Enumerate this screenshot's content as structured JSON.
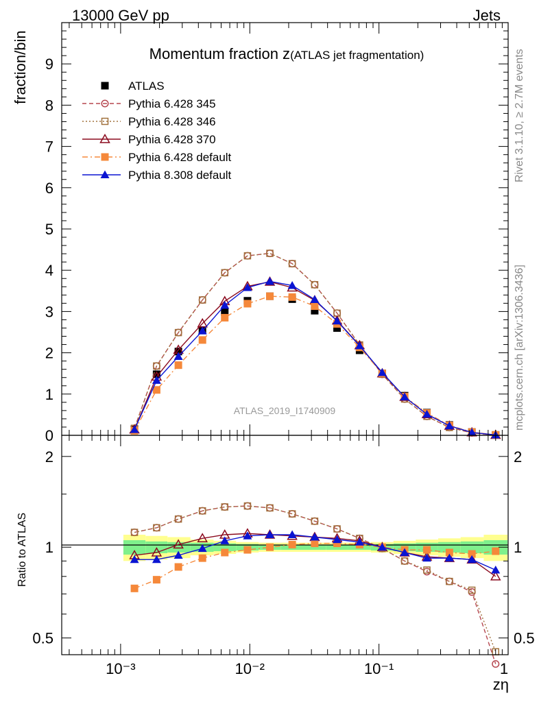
{
  "header": {
    "left": "13000 GeV pp",
    "right": "Jets"
  },
  "side": {
    "rivet": "Rivet 3.1.10, ≥ 2.7M events",
    "mcplots": "mcplots.cern.ch [arXiv:1306.3436]"
  },
  "chart_data": [
    {
      "type": "scatter",
      "title_main": "Momentum fraction z",
      "title_sub": "(ATLAS jet fragmentation)",
      "watermark": "ATLAS_2019_I1740909",
      "ylabel": "fraction/bin",
      "xscale": "log",
      "xlim": [
        0.00035,
        1.0
      ],
      "ylim": [
        0,
        10
      ],
      "yticks": [
        "0",
        "1",
        "2",
        "3",
        "4",
        "5",
        "6",
        "7",
        "8",
        "9"
      ],
      "legend_position": "top-left",
      "x": [
        0.00128,
        0.0019,
        0.0028,
        0.0043,
        0.0064,
        0.0096,
        0.0143,
        0.0213,
        0.0318,
        0.0474,
        0.0708,
        0.106,
        0.158,
        0.235,
        0.351,
        0.524,
        0.8
      ],
      "series": [
        {
          "name": "ATLAS",
          "color": "#000000",
          "marker": "square",
          "line": "none",
          "values": [
            0.15,
            1.48,
            2.03,
            2.55,
            2.99,
            3.26,
            3.37,
            3.3,
            3.02,
            2.6,
            2.06,
            1.5,
            0.96,
            0.55,
            0.25,
            0.08,
            0.01
          ]
        },
        {
          "name": "Pythia 6.428 345",
          "color": "#b5464f",
          "marker": "circle-open",
          "line": "dashed",
          "values": [
            0.17,
            1.68,
            2.49,
            3.28,
            3.94,
            4.35,
            4.41,
            4.16,
            3.65,
            2.96,
            2.19,
            1.48,
            0.88,
            0.46,
            0.19,
            0.06,
            0.004
          ]
        },
        {
          "name": "Pythia 6.428 346",
          "color": "#a0713c",
          "marker": "square-open",
          "line": "dotted",
          "values": [
            0.17,
            1.68,
            2.49,
            3.28,
            3.94,
            4.35,
            4.41,
            4.16,
            3.65,
            2.96,
            2.19,
            1.48,
            0.88,
            0.46,
            0.19,
            0.06,
            0.005
          ]
        },
        {
          "name": "Pythia 6.428 370",
          "color": "#8b0a1e",
          "marker": "triangle-open",
          "line": "solid",
          "values": [
            0.14,
            1.42,
            2.07,
            2.71,
            3.25,
            3.61,
            3.72,
            3.58,
            3.27,
            2.78,
            2.18,
            1.5,
            0.93,
            0.51,
            0.23,
            0.07,
            0.008
          ]
        },
        {
          "name": "Pythia 6.428 default",
          "color": "#f5883a",
          "marker": "square",
          "line": "dashdot",
          "values": [
            0.11,
            1.1,
            1.7,
            2.31,
            2.85,
            3.19,
            3.37,
            3.35,
            3.13,
            2.7,
            2.13,
            1.5,
            0.94,
            0.54,
            0.24,
            0.08,
            0.01
          ]
        },
        {
          "name": "Pythia 8.308 default",
          "color": "#0a14d2",
          "marker": "triangle",
          "line": "solid",
          "values": [
            0.14,
            1.33,
            1.91,
            2.53,
            3.15,
            3.58,
            3.73,
            3.63,
            3.29,
            2.77,
            2.17,
            1.52,
            0.93,
            0.51,
            0.23,
            0.07,
            0.009
          ]
        }
      ]
    },
    {
      "type": "scatter",
      "ylabel": "Ratio to ATLAS",
      "xlabel": "zη",
      "xscale": "log",
      "yscale": "log",
      "xlim": [
        0.00035,
        1.0
      ],
      "ylim": [
        0.44,
        2.35
      ],
      "yticks": [
        "0.5",
        "1",
        "2"
      ],
      "xticks": [
        "10⁻³",
        "10⁻²",
        "10⁻¹",
        "1"
      ],
      "band_inner_halfwidth": [
        0.055,
        0.045,
        0.04,
        0.035,
        0.03,
        0.025,
        0.02,
        0.02,
        0.02,
        0.02,
        0.02,
        0.025,
        0.03,
        0.035,
        0.04,
        0.045,
        0.055
      ],
      "band_outer_halfwidth": [
        0.1,
        0.09,
        0.08,
        0.06,
        0.05,
        0.04,
        0.035,
        0.035,
        0.035,
        0.035,
        0.035,
        0.04,
        0.05,
        0.06,
        0.07,
        0.08,
        0.1
      ],
      "band_inner_color": "#7ff08c",
      "band_outer_color": "#ffff90",
      "x": [
        0.00128,
        0.0019,
        0.0028,
        0.0043,
        0.0064,
        0.0096,
        0.0143,
        0.0213,
        0.0318,
        0.0474,
        0.0708,
        0.106,
        0.158,
        0.235,
        0.351,
        0.524,
        0.8
      ],
      "series": [
        {
          "name": "Pythia 6.428 345",
          "values": [
            1.12,
            1.16,
            1.24,
            1.32,
            1.36,
            1.37,
            1.35,
            1.29,
            1.22,
            1.15,
            1.07,
            0.99,
            0.9,
            0.83,
            0.77,
            0.71,
            0.41
          ]
        },
        {
          "name": "Pythia 6.428 346",
          "values": [
            1.12,
            1.16,
            1.24,
            1.32,
            1.36,
            1.37,
            1.35,
            1.29,
            1.22,
            1.15,
            1.07,
            0.99,
            0.9,
            0.84,
            0.77,
            0.72,
            0.45
          ]
        },
        {
          "name": "Pythia 6.428 370",
          "values": [
            0.94,
            0.96,
            1.02,
            1.07,
            1.1,
            1.11,
            1.1,
            1.09,
            1.08,
            1.07,
            1.05,
            1.0,
            0.96,
            0.93,
            0.92,
            0.91,
            0.8
          ]
        },
        {
          "name": "Pythia 6.428 default",
          "values": [
            0.73,
            0.78,
            0.86,
            0.92,
            0.96,
            0.98,
            1.0,
            1.02,
            1.03,
            1.03,
            1.02,
            1.0,
            0.98,
            0.98,
            0.96,
            0.95,
            0.97
          ]
        },
        {
          "name": "Pythia 8.308 default",
          "values": [
            0.91,
            0.91,
            0.94,
            0.99,
            1.05,
            1.09,
            1.1,
            1.1,
            1.08,
            1.06,
            1.04,
            1.0,
            0.96,
            0.92,
            0.92,
            0.91,
            0.84
          ]
        }
      ]
    }
  ]
}
